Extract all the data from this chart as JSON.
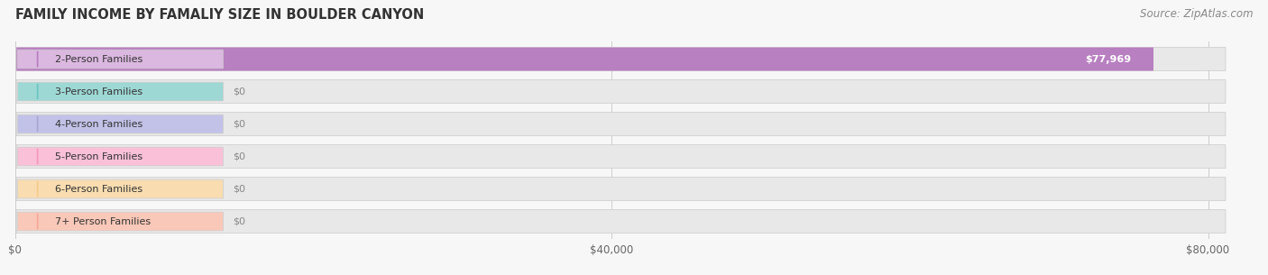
{
  "title": "FAMILY INCOME BY FAMALIY SIZE IN BOULDER CANYON",
  "source": "Source: ZipAtlas.com",
  "categories": [
    "2-Person Families",
    "3-Person Families",
    "4-Person Families",
    "5-Person Families",
    "6-Person Families",
    "7+ Person Families"
  ],
  "values": [
    77969,
    0,
    0,
    0,
    0,
    0
  ],
  "bar_colors": [
    "#b87fc1",
    "#6dc4c0",
    "#a9a8d4",
    "#f599bb",
    "#f5c98a",
    "#f5a898"
  ],
  "label_bg_colors": [
    "#dbb8e0",
    "#9ed8d5",
    "#c2c2e8",
    "#f9c0d8",
    "#f9ddb0",
    "#f9c8b8"
  ],
  "value_labels": [
    "$77,969",
    "$0",
    "$0",
    "$0",
    "$0",
    "$0"
  ],
  "xlim_max": 83000,
  "xticks": [
    0,
    40000,
    80000
  ],
  "xticklabels": [
    "$0",
    "$40,000",
    "$80,000"
  ],
  "background_color": "#f7f7f7",
  "bar_bg_color": "#e8e8e8",
  "title_fontsize": 10.5,
  "source_fontsize": 8.5,
  "label_fontsize": 8,
  "value_fontsize": 8
}
